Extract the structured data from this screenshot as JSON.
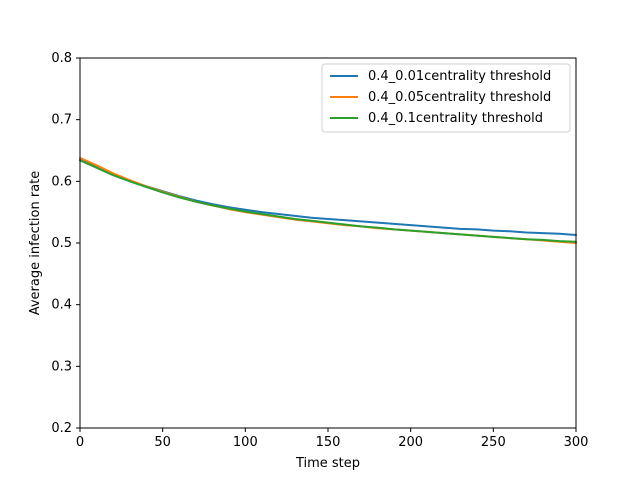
{
  "chart_data": {
    "type": "line",
    "title": "",
    "xlabel": "Time step",
    "ylabel": "Average infection rate",
    "xlim": [
      0,
      300
    ],
    "ylim": [
      0.2,
      0.8
    ],
    "xticks": [
      0,
      50,
      100,
      150,
      200,
      250,
      300
    ],
    "yticks": [
      0.2,
      0.3,
      0.4,
      0.5,
      0.6,
      0.7,
      0.8
    ],
    "xtick_labels": [
      "0",
      "50",
      "100",
      "150",
      "200",
      "250",
      "300"
    ],
    "ytick_labels": [
      "0.2",
      "0.3",
      "0.4",
      "0.5",
      "0.6",
      "0.7",
      "0.8"
    ],
    "grid": false,
    "legend_position": "top-right",
    "x": [
      0,
      10,
      20,
      30,
      40,
      50,
      60,
      70,
      80,
      90,
      100,
      110,
      120,
      130,
      140,
      150,
      160,
      170,
      180,
      190,
      200,
      210,
      220,
      230,
      240,
      250,
      260,
      270,
      280,
      290,
      300
    ],
    "series": [
      {
        "name": "0.4_0.01centrality threshold",
        "color": "#1f77b4",
        "values": [
          0.635,
          0.624,
          0.612,
          0.601,
          0.592,
          0.584,
          0.576,
          0.569,
          0.563,
          0.558,
          0.554,
          0.55,
          0.547,
          0.544,
          0.541,
          0.539,
          0.537,
          0.535,
          0.533,
          0.531,
          0.529,
          0.527,
          0.525,
          0.523,
          0.522,
          0.52,
          0.519,
          0.517,
          0.516,
          0.515,
          0.513
        ]
      },
      {
        "name": "0.4_0.05centrality threshold",
        "color": "#ff7f0e",
        "values": [
          0.638,
          0.626,
          0.613,
          0.602,
          0.592,
          0.583,
          0.575,
          0.567,
          0.561,
          0.555,
          0.55,
          0.546,
          0.542,
          0.538,
          0.535,
          0.532,
          0.529,
          0.527,
          0.524,
          0.522,
          0.52,
          0.518,
          0.516,
          0.514,
          0.512,
          0.51,
          0.508,
          0.506,
          0.504,
          0.502,
          0.5
        ]
      },
      {
        "name": "0.4_0.1centrality threshold",
        "color": "#2ca02c",
        "values": [
          0.634,
          0.622,
          0.61,
          0.6,
          0.591,
          0.582,
          0.574,
          0.567,
          0.561,
          0.556,
          0.551,
          0.547,
          0.543,
          0.539,
          0.536,
          0.533,
          0.53,
          0.527,
          0.525,
          0.522,
          0.52,
          0.518,
          0.516,
          0.514,
          0.512,
          0.51,
          0.508,
          0.506,
          0.505,
          0.503,
          0.502
        ]
      }
    ]
  }
}
